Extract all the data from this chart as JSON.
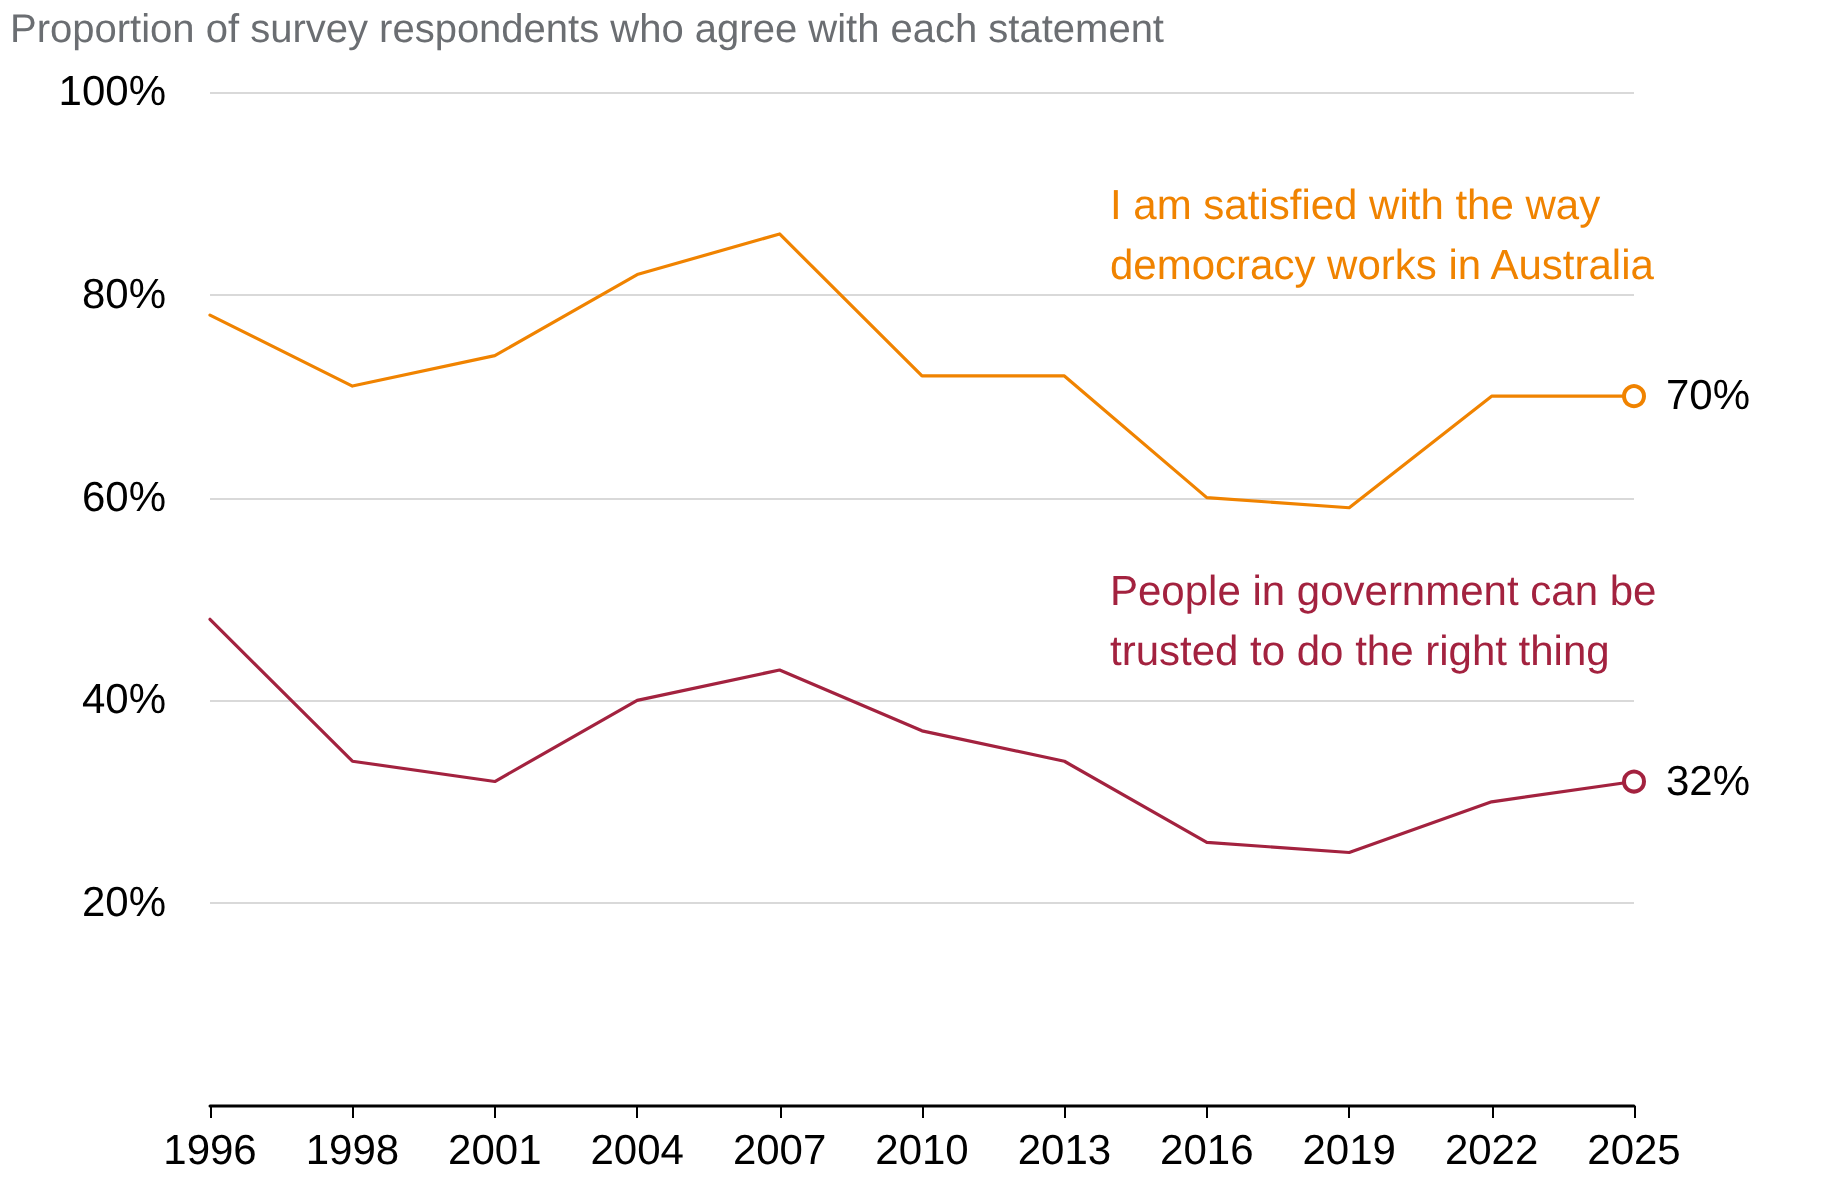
{
  "chart_data": {
    "type": "line",
    "title": "Proportion of survey respondents who agree with each statement",
    "categories": [
      "1996",
      "1998",
      "2001",
      "2004",
      "2007",
      "2010",
      "2013",
      "2016",
      "2019",
      "2022",
      "2025"
    ],
    "series": [
      {
        "name": "I am satisfied with the way democracy works in Australia",
        "color": "#f08300",
        "values": [
          78,
          71,
          74,
          82,
          86,
          72,
          72,
          60,
          59,
          70,
          70
        ],
        "value_labels": [
          null,
          null,
          null,
          null,
          null,
          null,
          null,
          null,
          null,
          null,
          "70%"
        ]
      },
      {
        "name": "People in government can be trusted to do the right thing",
        "color": "#a3223f",
        "values": [
          48,
          34,
          32,
          40,
          43,
          37,
          34,
          26,
          25,
          30,
          32
        ],
        "value_labels": [
          null,
          null,
          null,
          null,
          null,
          null,
          null,
          null,
          null,
          null,
          "32%"
        ]
      }
    ],
    "ylim": [
      0,
      100
    ],
    "yticks": [
      {
        "value": 20,
        "label": "20%"
      },
      {
        "value": 40,
        "label": "40%"
      },
      {
        "value": 60,
        "label": "60%"
      },
      {
        "value": 80,
        "label": "80%"
      },
      {
        "value": 100,
        "label": "100%"
      }
    ],
    "grid": "y",
    "legend": false,
    "line_style": "solid"
  }
}
